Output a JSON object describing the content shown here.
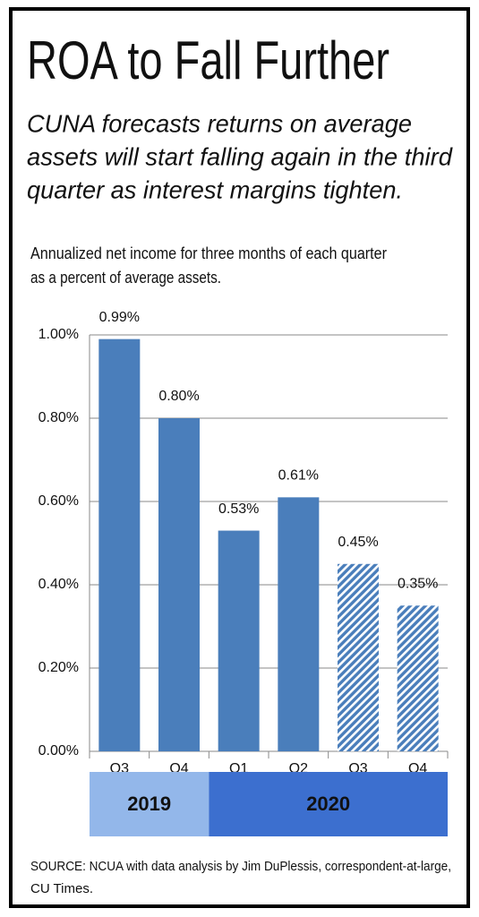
{
  "chart_data": {
    "type": "bar",
    "title": "ROA to Fall Further",
    "subtitle": [
      "CUNA forecasts returns on average",
      "assets will start falling again in the third",
      "quarter as interest margins tighten."
    ],
    "note": [
      "Annualized net income for three months of each quarter",
      "as a percent of average assets."
    ],
    "categories": [
      "Q3",
      "Q4",
      "Q1",
      "Q2",
      "Q3",
      "Q4"
    ],
    "values": [
      0.99,
      0.8,
      0.53,
      0.61,
      0.45,
      0.35
    ],
    "value_labels": [
      "0.99%",
      "0.80%",
      "0.53%",
      "0.61%",
      "0.45%",
      "0.35%"
    ],
    "hatched": [
      false,
      false,
      false,
      false,
      true,
      true
    ],
    "color": "#4a7ebb",
    "groups": [
      "2019",
      "2020"
    ],
    "group_colors": [
      "#93b7ea",
      "#3c6fcf"
    ],
    "ylim": [
      0,
      1.0
    ],
    "yticks": [
      {
        "value": 0,
        "label": "0.00%"
      },
      {
        "value": 0.2,
        "label": "0.20%"
      },
      {
        "value": 0.4,
        "label": "0.40%"
      },
      {
        "value": 0.6,
        "label": "0.60%"
      },
      {
        "value": 0.8,
        "label": "0.80%"
      },
      {
        "value": 1.0,
        "label": "1.00%"
      }
    ],
    "grid": true,
    "source": [
      "SOURCE: NCUA with data analysis by Jim DuPlessis, correspondent-at-large,",
      "CU Times."
    ]
  }
}
